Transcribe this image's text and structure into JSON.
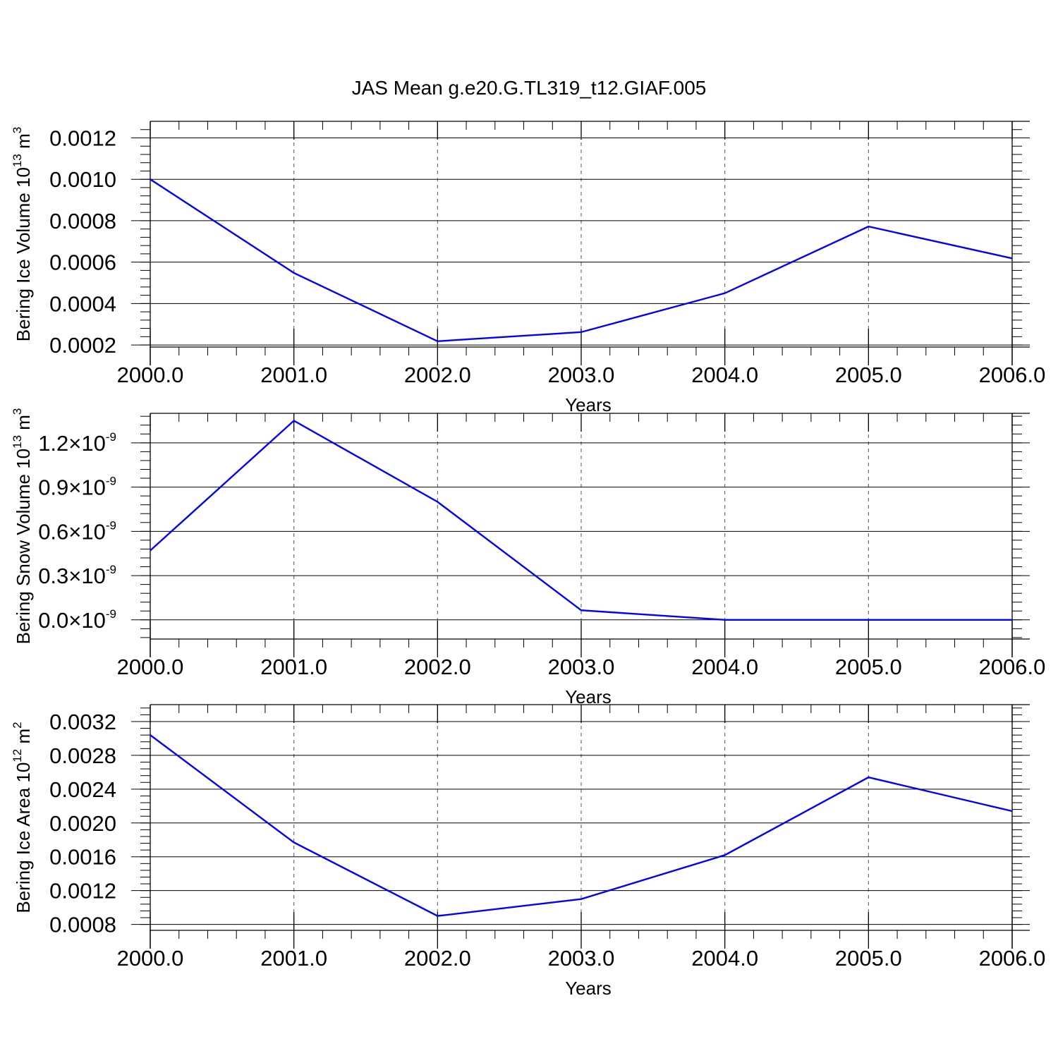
{
  "title": "JAS Mean g.e20.G.TL319_t12.GIAF.005",
  "colors": {
    "series": "#0000ff",
    "axis": "#000000",
    "grid": "#555555"
  },
  "chart_data": [
    {
      "type": "line",
      "ylabel": {
        "text": "Bering Ice Volume 10",
        "sup": "13",
        "unit": " m",
        "unit_sup": "3"
      },
      "xlabel": "Years",
      "x": [
        2000,
        2001,
        2002,
        2003,
        2004,
        2005,
        2006
      ],
      "series": [
        {
          "values": [
            0.001,
            0.000548,
            0.000218,
            0.000262,
            0.00045,
            0.000772,
            0.000618
          ]
        }
      ],
      "xlim": [
        2000,
        2006
      ],
      "ylim": [
        0.00019,
        0.00128
      ],
      "xticks": [
        {
          "value": 2000,
          "label": "2000.0"
        },
        {
          "value": 2001,
          "label": "2001.0"
        },
        {
          "value": 2002,
          "label": "2002.0"
        },
        {
          "value": 2003,
          "label": "2003.0"
        },
        {
          "value": 2004,
          "label": "2004.0"
        },
        {
          "value": 2005,
          "label": "2005.0"
        },
        {
          "value": 2006,
          "label": "2006.0"
        }
      ],
      "yticks": [
        {
          "value": 0.0002,
          "label": "0.0002"
        },
        {
          "value": 0.0004,
          "label": "0.0004"
        },
        {
          "value": 0.0006,
          "label": "0.0006"
        },
        {
          "value": 0.0008,
          "label": "0.0008"
        },
        {
          "value": 0.001,
          "label": "0.0010"
        },
        {
          "value": 0.0012,
          "label": "0.0012"
        }
      ],
      "y_minor_step": 4e-05,
      "x_minor_step": 0.2,
      "grid": "x-dashed"
    },
    {
      "type": "line",
      "ylabel": {
        "text": "Bering Snow Volume 10",
        "sup": "13",
        "unit": " m",
        "unit_sup": "3"
      },
      "xlabel": "Years",
      "x": [
        2000,
        2001,
        2002,
        2003,
        2004,
        2005,
        2006
      ],
      "series": [
        {
          "values": [
            4.7e-10,
            1.35e-09,
            8e-10,
            6.5e-11,
            0.0,
            0.0,
            0.0
          ]
        }
      ],
      "xlim": [
        2000,
        2006
      ],
      "ylim": [
        -1.3e-10,
        1.4e-09
      ],
      "xticks": [
        {
          "value": 2000,
          "label": "2000.0"
        },
        {
          "value": 2001,
          "label": "2001.0"
        },
        {
          "value": 2002,
          "label": "2002.0"
        },
        {
          "value": 2003,
          "label": "2003.0"
        },
        {
          "value": 2004,
          "label": "2004.0"
        },
        {
          "value": 2005,
          "label": "2005.0"
        },
        {
          "value": 2006,
          "label": "2006.0"
        }
      ],
      "yticks": [
        {
          "value": 0.0,
          "mantissa": "0.0",
          "exp": "-9"
        },
        {
          "value": 3e-10,
          "mantissa": "0.3",
          "exp": "-9"
        },
        {
          "value": 6e-10,
          "mantissa": "0.6",
          "exp": "-9"
        },
        {
          "value": 9e-10,
          "mantissa": "0.9",
          "exp": "-9"
        },
        {
          "value": 1.2e-09,
          "mantissa": "1.2",
          "exp": "-9"
        }
      ],
      "y_minor_step": 6e-11,
      "x_minor_step": 0.2,
      "grid": "x-dashed"
    },
    {
      "type": "line",
      "ylabel": {
        "text": "Bering Ice Area 10",
        "sup": "12",
        "unit": " m",
        "unit_sup": "2"
      },
      "xlabel": "Years",
      "x": [
        2000,
        2001,
        2002,
        2003,
        2004,
        2005,
        2006
      ],
      "series": [
        {
          "values": [
            0.00304,
            0.00177,
            0.0009,
            0.0011,
            0.00162,
            0.00254,
            0.00214
          ]
        }
      ],
      "xlim": [
        2000,
        2006
      ],
      "ylim": [
        0.00073,
        0.0034
      ],
      "xticks": [
        {
          "value": 2000,
          "label": "2000.0"
        },
        {
          "value": 2001,
          "label": "2001.0"
        },
        {
          "value": 2002,
          "label": "2002.0"
        },
        {
          "value": 2003,
          "label": "2003.0"
        },
        {
          "value": 2004,
          "label": "2004.0"
        },
        {
          "value": 2005,
          "label": "2005.0"
        },
        {
          "value": 2006,
          "label": "2006.0"
        }
      ],
      "yticks": [
        {
          "value": 0.0008,
          "label": "0.0008"
        },
        {
          "value": 0.0012,
          "label": "0.0012"
        },
        {
          "value": 0.0016,
          "label": "0.0016"
        },
        {
          "value": 0.002,
          "label": "0.0020"
        },
        {
          "value": 0.0024,
          "label": "0.0024"
        },
        {
          "value": 0.0028,
          "label": "0.0028"
        },
        {
          "value": 0.0032,
          "label": "0.0032"
        }
      ],
      "y_minor_step": 8e-05,
      "x_minor_step": 0.2,
      "grid": "x-dashed"
    }
  ]
}
